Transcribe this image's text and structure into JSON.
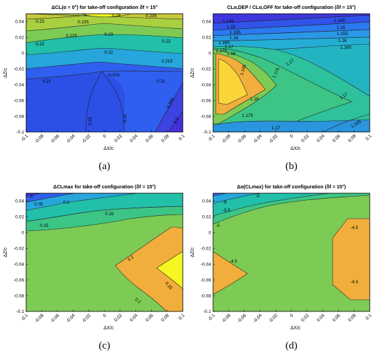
{
  "figure": {
    "x_ticks": [
      "-0.1",
      "-0.08",
      "-0.06",
      "-0.04",
      "-0.02",
      "0",
      "0.02",
      "0.04",
      "0.06",
      "0.08",
      "0.1"
    ],
    "y_ticks": [
      "0.04",
      "0.02",
      "0",
      "-0.02",
      "-0.04",
      "-0.06",
      "-0.08",
      "-0.1"
    ],
    "xlabel": "ΔX/c",
    "ylabel": "ΔZ/c"
  },
  "colors": {
    "c1": "#4430d8",
    "c2": "#2f5fee",
    "c3": "#27a6dc",
    "c4": "#22bfa9",
    "c5": "#3dc585",
    "c6": "#7dcb55",
    "c7": "#f2ae3c",
    "c8": "#f9d53a",
    "c9": "#f6f622"
  },
  "chart_data": [
    {
      "type": "heatmap",
      "title": "ΔCL(α = 0°) for take-off configuration δf = 15°",
      "caption": "(a)",
      "xlabel": "ΔX/c",
      "ylabel": "ΔZ/c",
      "xlim": [
        -0.1,
        0.1
      ],
      "ylim": [
        -0.1,
        0.05
      ],
      "contour_levels": [
        0.2,
        0.205,
        0.21,
        0.215,
        0.22,
        0.225,
        0.23,
        0.235,
        0.24
      ],
      "contour_labels": [
        "0.24",
        "0.235",
        "0.235",
        "0.23",
        "0.23",
        "0.225",
        "0.22",
        "0.22",
        "0.22",
        "0.215",
        "0.215",
        "0.21",
        "0.21",
        "0.21",
        "0.21",
        "0.205",
        "0.2"
      ]
    },
    {
      "type": "heatmap",
      "title": "CLα,DEP / CLα,OFF for take-off configuration (δf = 15°)",
      "caption": "(b)",
      "xlabel": "ΔX/c",
      "ylabel": "ΔZ/c",
      "xlim": [
        -0.1,
        0.1
      ],
      "ylim": [
        -0.1,
        0.05
      ],
      "contour_levels": [
        1.145,
        1.15,
        1.155,
        1.16,
        1.165,
        1.17,
        1.175,
        1.18,
        1.185
      ],
      "contour_labels": [
        "1.145",
        "1.145",
        "1.15",
        "1.15",
        "1.155",
        "1.155",
        "1.16",
        "1.16",
        "1.165",
        "1.165",
        "1.17",
        "1.17",
        "1.17",
        "1.175",
        "1.175",
        "1.175",
        "1.18",
        "1.18",
        "1.185",
        "1.17",
        "1.165"
      ]
    },
    {
      "type": "heatmap",
      "title": "ΔCLmax for take-off configuration (δf = 15°)",
      "caption": "(c)",
      "xlabel": "ΔX/c",
      "ylabel": "ΔZ/c",
      "xlim": [
        -0.1,
        0.1
      ],
      "ylim": [
        -0.1,
        0.05
      ],
      "contour_levels": [
        0,
        0.05,
        0.1,
        0.15,
        0.2,
        0.25
      ],
      "contour_labels": [
        "0",
        "0.05",
        "0.1",
        "0.15",
        "0.15",
        "0.2",
        "0.25",
        "0.2"
      ]
    },
    {
      "type": "heatmap",
      "title": "Δα(CLmax) for take-off configuration (δf = 15°)",
      "caption": "(d)",
      "xlabel": "ΔX/c",
      "ylabel": "ΔZ/c",
      "xlim": [
        -0.1,
        0.1
      ],
      "ylim": [
        -0.1,
        0.05
      ],
      "contour_levels": [
        -6,
        -5.5,
        -5,
        -4.5
      ],
      "contour_labels": [
        "-6",
        "-5.5",
        "-5",
        "-5",
        "-4.5",
        "-4.5",
        "-4.5"
      ]
    }
  ]
}
